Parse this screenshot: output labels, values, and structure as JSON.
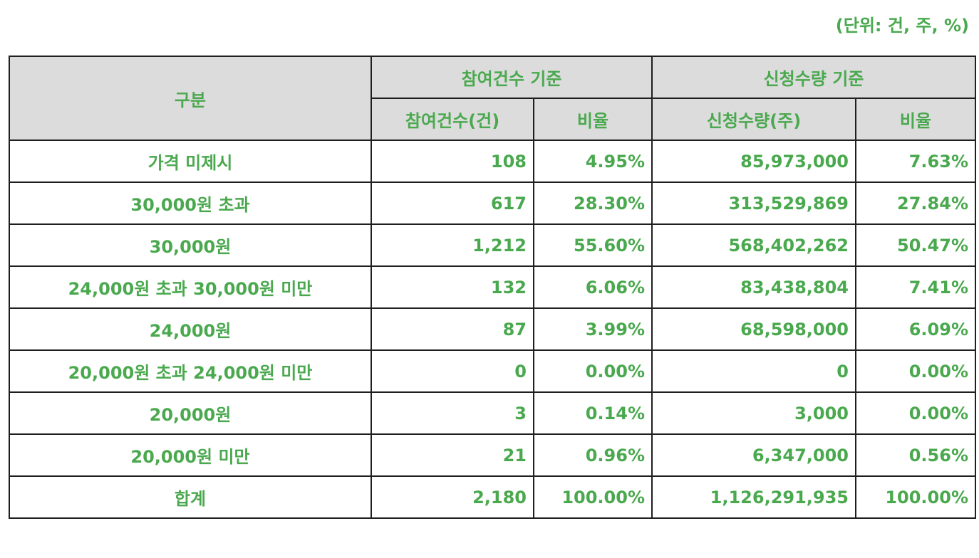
{
  "unit_note": "(단위: 건, 주, %)",
  "header": {
    "category": "구분",
    "group_participation": "참여건수 기준",
    "group_quantity": "신청수량 기준",
    "participation_count": "참여건수(건)",
    "participation_ratio": "비율",
    "quantity": "신청수량(주)",
    "quantity_ratio": "비율"
  },
  "rows": [
    {
      "label": "가격 미제시",
      "count": "108",
      "count_ratio": "4.95%",
      "quantity": "85,973,000",
      "quantity_ratio": "7.63%"
    },
    {
      "label": "30,000원 초과",
      "count": "617",
      "count_ratio": "28.30%",
      "quantity": "313,529,869",
      "quantity_ratio": "27.84%"
    },
    {
      "label": "30,000원",
      "count": "1,212",
      "count_ratio": "55.60%",
      "quantity": "568,402,262",
      "quantity_ratio": "50.47%"
    },
    {
      "label": "24,000원 초과 30,000원 미만",
      "count": "132",
      "count_ratio": "6.06%",
      "quantity": "83,438,804",
      "quantity_ratio": "7.41%"
    },
    {
      "label": "24,000원",
      "count": "87",
      "count_ratio": "3.99%",
      "quantity": "68,598,000",
      "quantity_ratio": "6.09%"
    },
    {
      "label": "20,000원 초과 24,000원 미만",
      "count": "0",
      "count_ratio": "0.00%",
      "quantity": "0",
      "quantity_ratio": "0.00%"
    },
    {
      "label": "20,000원",
      "count": "3",
      "count_ratio": "0.14%",
      "quantity": "3,000",
      "quantity_ratio": "0.00%"
    },
    {
      "label": "20,000원 미만",
      "count": "21",
      "count_ratio": "0.96%",
      "quantity": "6,347,000",
      "quantity_ratio": "0.56%"
    },
    {
      "label": "합계",
      "count": "2,180",
      "count_ratio": "100.00%",
      "quantity": "1,126,291,935",
      "quantity_ratio": "100.00%"
    }
  ],
  "colors": {
    "text": "#4aa94e",
    "header_bg": "#dcdcdc",
    "border": "#1f1f1f"
  }
}
